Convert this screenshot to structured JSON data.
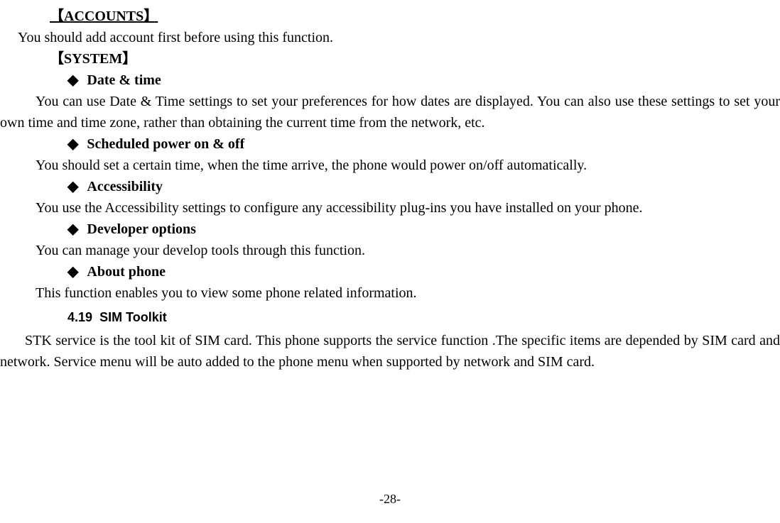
{
  "accounts": {
    "header": "【ACCOUNTS】",
    "body": "You should add account first before using this function."
  },
  "system": {
    "header": "【SYSTEM】",
    "items": [
      {
        "title": "Date & time",
        "body": "You can use Date & Time settings to set your preferences for how dates are displayed. You can also use these settings to set your own time and time zone, rather than obtaining the current time from the network, etc."
      },
      {
        "title": "Scheduled power on & off",
        "body": "You should set a certain time, when the time arrive, the phone would power on/off automatically."
      },
      {
        "title": "Accessibility",
        "body": "You use the Accessibility settings to configure any accessibility plug-ins you have installed on your phone."
      },
      {
        "title": "Developer options",
        "body": "You can manage your develop tools through this function."
      },
      {
        "title": "About phone",
        "body": "This function enables you to view some phone related information."
      }
    ]
  },
  "simToolkit": {
    "number": "4.19",
    "title": "SIM Toolkit",
    "body": "STK service is the tool kit of SIM card. This phone supports the service function .The specific items are depended by SIM card and network. Service menu will be auto added to the phone menu when supported by network and SIM card."
  },
  "diamond": "◆",
  "pageNumber": "-28-"
}
